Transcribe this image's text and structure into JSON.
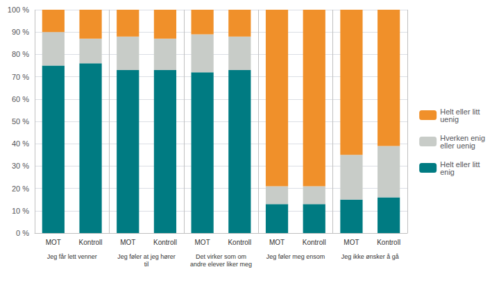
{
  "chart_data": {
    "type": "bar",
    "stacked": true,
    "categories": [
      "MOT",
      "Kontroll",
      "MOT",
      "Kontroll",
      "MOT",
      "Kontroll",
      "MOT",
      "Kontroll",
      "MOT",
      "Kontroll"
    ],
    "annotations": [
      "Jeg får lett venner",
      "Jeg føler at jeg hører\ntil",
      "Det virker som om\nandre elever liker meg",
      "Jeg føler meg ensom",
      "Jeg ikke ønsker å gå"
    ],
    "series": [
      {
        "name": "Helt eller litt\nenig",
        "color": "#007b82",
        "values": [
          75,
          76,
          73,
          73,
          72,
          73,
          13,
          13,
          15,
          16
        ]
      },
      {
        "name": "Hverken enig\neller uenig",
        "color": "#c8ccc8",
        "values": [
          15,
          11,
          15,
          14,
          17,
          15,
          8,
          8,
          20,
          23
        ]
      },
      {
        "name": "Helt eller litt\nuenig",
        "color": "#f0902a",
        "values": [
          10,
          13,
          12,
          13,
          11,
          12,
          79,
          79,
          65,
          61
        ]
      }
    ],
    "ylim": [
      0,
      100
    ],
    "yticks": [
      {
        "value": 0,
        "label": "0 %"
      },
      {
        "value": 10,
        "label": "10 %"
      },
      {
        "value": 20,
        "label": "20 %"
      },
      {
        "value": 30,
        "label": "30 %"
      },
      {
        "value": 40,
        "label": "40 %"
      },
      {
        "value": 50,
        "label": "50 %"
      },
      {
        "value": 60,
        "label": "60 %"
      },
      {
        "value": 70,
        "label": "70 %"
      },
      {
        "value": 80,
        "label": "80 %"
      },
      {
        "value": 90,
        "label": "90 %"
      },
      {
        "value": 100,
        "label": "100 %"
      }
    ],
    "grid": true,
    "legend": "right"
  }
}
